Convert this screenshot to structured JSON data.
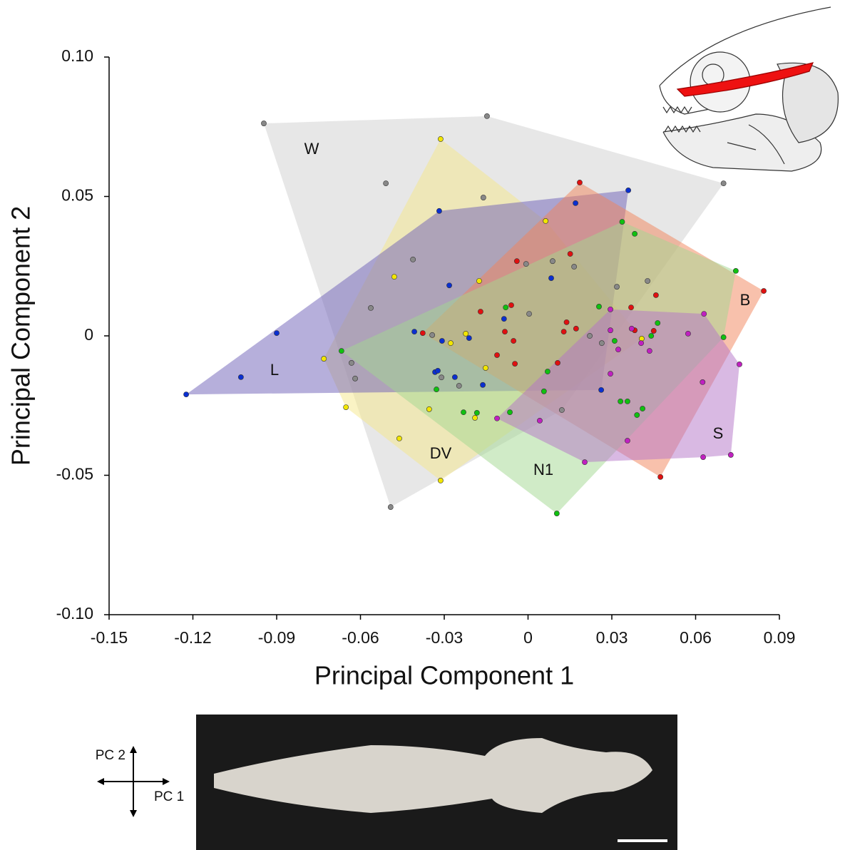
{
  "chart_data": {
    "type": "scatter",
    "xlabel": "Principal Component 1",
    "ylabel": "Principal Component 2",
    "xlim": [
      -0.15,
      0.09
    ],
    "ylim": [
      -0.1,
      0.1
    ],
    "xticks": [
      -0.15,
      -0.12,
      -0.09,
      -0.06,
      -0.03,
      0,
      0.03,
      0.06,
      0.09
    ],
    "yticks": [
      {
        "value": -0.1,
        "label": "-0.10"
      },
      -0.05,
      0,
      0.05,
      {
        "value": 0.1,
        "label": "0.10"
      }
    ],
    "series": [
      {
        "name": "W",
        "color": "#888888",
        "fill": "#cfcfcf",
        "x": [
          -0.0946,
          -0.0147,
          0.07,
          -0.0492,
          -0.0509,
          -0.016,
          -0.0412,
          -0.0563,
          -0.0632,
          -0.0619,
          -0.0343,
          -0.031,
          -0.0247,
          -0.0007,
          0.0088,
          0.0165,
          0.0004,
          0.0318,
          0.0428,
          0.0221,
          0.0264,
          0.0121
        ],
        "values": [
          0.0762,
          0.0788,
          0.0547,
          -0.0614,
          0.0547,
          0.0496,
          0.0274,
          0.01,
          -0.0097,
          -0.0153,
          0.0003,
          -0.0149,
          -0.0179,
          0.0258,
          0.0268,
          0.0248,
          0.0079,
          0.0176,
          0.0197,
          0,
          -0.0026,
          -0.0266
        ]
      },
      {
        "name": "DV",
        "color": "#f2e600",
        "fill": "#f6e88a",
        "x": [
          -0.0313,
          0.0063,
          -0.0175,
          -0.0479,
          -0.0731,
          -0.0652,
          -0.0461,
          -0.0313,
          -0.0354,
          -0.0277,
          -0.0223,
          -0.0152,
          -0.019,
          0.0407
        ],
        "values": [
          0.0706,
          0.0412,
          0.0197,
          0.0212,
          -0.0082,
          -0.0256,
          -0.0368,
          -0.0519,
          -0.0263,
          -0.0026,
          0.0008,
          -0.0115,
          -0.0294,
          -0.001
        ]
      },
      {
        "name": "L",
        "color": "#0a2fd0",
        "fill": "#6e5fb8",
        "x": [
          -0.1224,
          -0.1028,
          -0.09,
          -0.0318,
          0.017,
          0.0359,
          -0.0282,
          0.0083,
          -0.0086,
          -0.0407,
          -0.0308,
          -0.0211,
          -0.0333,
          -0.0323,
          -0.0262,
          -0.0162,
          0.0262
        ],
        "values": [
          -0.021,
          -0.0148,
          0.001,
          0.0448,
          0.0476,
          0.0522,
          0.0181,
          0.0207,
          0.0061,
          0.0015,
          -0.0018,
          -0.0008,
          -0.013,
          -0.0125,
          -0.0148,
          -0.0176,
          -0.0194
        ]
      },
      {
        "name": "B",
        "color": "#e01010",
        "fill": "#f2845a",
        "x": [
          0.0185,
          0.0844,
          0.0474,
          -0.0377,
          -0.004,
          0.0151,
          -0.017,
          -0.006,
          -0.0083,
          0.0138,
          0.0172,
          0.0128,
          -0.0052,
          -0.0111,
          -0.0047,
          0.0106,
          0.0369,
          0.0382,
          0.0458,
          0.045
        ],
        "values": [
          0.055,
          0.0161,
          -0.0506,
          0.001,
          0.0268,
          0.0294,
          0.0087,
          0.011,
          0.0015,
          0.0049,
          0.0026,
          0.0015,
          -0.0018,
          -0.0069,
          -0.01,
          -0.0097,
          0.0102,
          0.002,
          0.0146,
          0.0018
        ]
      },
      {
        "name": "N1",
        "color": "#10c010",
        "fill": "#a2d890",
        "x": [
          0.0337,
          0.0382,
          0.0744,
          0.07,
          0.0103,
          -0.0065,
          -0.0231,
          -0.0183,
          -0.0668,
          -0.0328,
          -0.008,
          0.007,
          0.0057,
          0.0254,
          0.031,
          0.0331,
          0.0356,
          0.039,
          0.041,
          0.0441,
          0.0464
        ],
        "values": [
          0.0409,
          0.0366,
          0.0233,
          -0.0005,
          -0.0637,
          -0.0274,
          -0.0274,
          -0.0276,
          -0.0054,
          -0.0192,
          0.0102,
          -0.0128,
          -0.0199,
          0.0105,
          -0.0018,
          -0.0235,
          -0.0235,
          -0.0284,
          -0.0261,
          0,
          0.0046
        ]
      },
      {
        "name": "S",
        "color": "#c020c0",
        "fill": "#b474c8",
        "x": [
          -0.0111,
          0.0042,
          0.0203,
          0.0356,
          0.0627,
          0.0726,
          0.0757,
          0.063,
          0.0625,
          0.0573,
          0.0295,
          0.0295,
          0.0295,
          0.0323,
          0.0371,
          0.0405,
          0.0435
        ],
        "values": [
          -0.0296,
          -0.0304,
          -0.0453,
          -0.0376,
          -0.0435,
          -0.0427,
          -0.0102,
          0.0079,
          -0.0166,
          0.0008,
          0.0095,
          0.002,
          -0.0136,
          -0.0049,
          0.0026,
          -0.0026,
          -0.0054
        ]
      }
    ]
  },
  "orientation": {
    "pc2": "PC 2",
    "pc1": "PC 1"
  }
}
